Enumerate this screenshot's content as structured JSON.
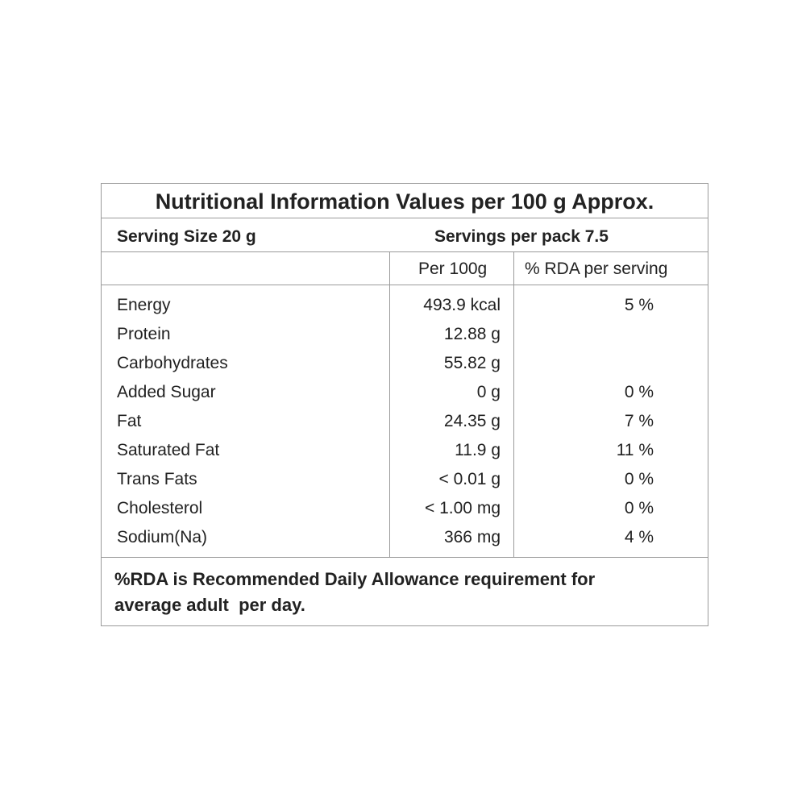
{
  "table": {
    "title": "Nutritional Information Values per 100 g Approx.",
    "serving_size": "Serving Size 20 g",
    "servings_per_pack": "Servings per pack 7.5",
    "columns": [
      "Per 100g",
      "% RDA per serving"
    ],
    "rows": [
      [
        "Energy",
        "493.9 kcal",
        "5 %"
      ],
      [
        "Protein",
        "12.88 g"
      ],
      [
        "Carbohydrates",
        "55.82 g"
      ],
      [
        "Added Sugar",
        "0 g",
        "0 %"
      ],
      [
        "Fat",
        "24.35 g",
        "7 %"
      ],
      [
        "Saturated Fat",
        "11.9 g",
        "11 %"
      ],
      [
        "Trans Fats",
        "< 0.01 g",
        "0 %"
      ],
      [
        "Cholesterol",
        "< 1.00 mg",
        "0 %"
      ],
      [
        "Sodium(Na)",
        "366 mg",
        "4 %"
      ]
    ],
    "footnote": [
      "%RDA is Recommended Daily Allowance requirement for",
      "average adult  per day."
    ]
  }
}
